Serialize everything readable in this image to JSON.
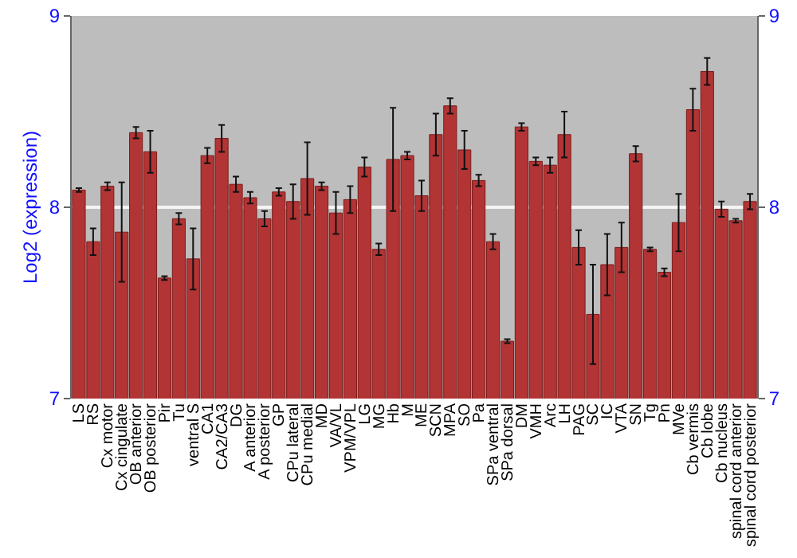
{
  "chart_data": {
    "type": "bar",
    "ylabel": "Log2 (expression)",
    "color": "#b23434",
    "categories": [
      "LS",
      "RS",
      "Cx motor",
      "Cx cingulate",
      "OB anterior",
      "OB posterior",
      "Pir",
      "Tu",
      "ventral S",
      "CA1",
      "CA2/CA3",
      "DG",
      "A anterior",
      "A posterior",
      "GP",
      "CPu lateral",
      "CPu medial",
      "MD",
      "VA/VL",
      "VPM/VPL",
      "LG",
      "MG",
      "Hb",
      "M",
      "ME",
      "SCN",
      "MPA",
      "SO",
      "Pa",
      "SPa ventral",
      "SPa dorsal",
      "DM",
      "VMH",
      "Arc",
      "LH",
      "PAG",
      "SC",
      "IC",
      "VTA",
      "SN",
      "Tg",
      "Pn",
      "MVe",
      "Cb vermis",
      "Cb lobe",
      "Cb nucleus",
      "spinal cord anterior",
      "spinal cord posterior"
    ],
    "values": [
      8.09,
      7.82,
      8.11,
      7.87,
      8.39,
      8.29,
      7.63,
      7.94,
      7.73,
      8.27,
      8.36,
      8.12,
      8.05,
      7.94,
      8.08,
      8.03,
      8.15,
      8.11,
      7.97,
      8.04,
      8.21,
      7.78,
      8.25,
      8.27,
      8.06,
      8.38,
      8.53,
      8.3,
      8.14,
      7.82,
      7.3,
      8.42,
      8.24,
      8.22,
      8.38,
      7.79,
      7.44,
      7.7,
      7.79,
      8.28,
      7.78,
      7.66,
      7.92,
      8.51,
      8.71,
      7.99,
      7.93,
      8.03
    ],
    "errors": [
      0.01,
      0.07,
      0.02,
      0.26,
      0.03,
      0.11,
      0.01,
      0.03,
      0.16,
      0.04,
      0.07,
      0.04,
      0.03,
      0.04,
      0.02,
      0.09,
      0.19,
      0.02,
      0.11,
      0.07,
      0.05,
      0.03,
      0.27,
      0.02,
      0.08,
      0.11,
      0.04,
      0.1,
      0.03,
      0.04,
      0.01,
      0.02,
      0.02,
      0.04,
      0.12,
      0.09,
      0.26,
      0.16,
      0.13,
      0.04,
      0.01,
      0.02,
      0.15,
      0.11,
      0.07,
      0.04,
      0.01,
      0.04
    ],
    "ylim": [
      7,
      9
    ],
    "yticks": [
      7,
      8,
      9
    ],
    "y2lim": [
      7,
      9
    ],
    "y2ticks": [
      7,
      8,
      9
    ],
    "grid": "y"
  }
}
